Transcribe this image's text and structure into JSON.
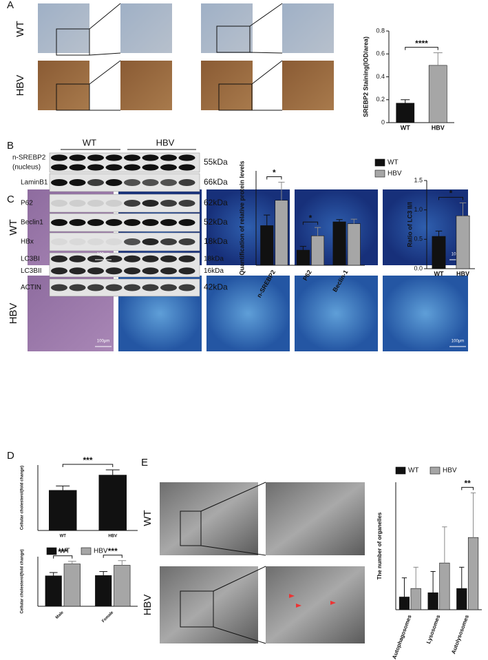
{
  "panel_labels": [
    "A",
    "B",
    "C",
    "D",
    "E"
  ],
  "panel_a": {
    "row_labels": [
      "WT",
      "HBV"
    ]
  },
  "panel_b": {
    "groups": [
      "WT",
      "HBV"
    ],
    "blots": [
      {
        "labels": [
          "n-SREBP2",
          "(nucleus)"
        ],
        "kda": [
          "55kDa"
        ]
      },
      {
        "labels": [
          "LaminB1"
        ],
        "kda": [
          "66kDa"
        ]
      },
      {
        "labels": [
          "P62"
        ],
        "kda": [
          "62kDa"
        ]
      },
      {
        "labels": [
          "Beclin1"
        ],
        "kda": [
          "52kDa"
        ]
      },
      {
        "labels": [
          "HBx"
        ],
        "kda": [
          "18kDa"
        ]
      },
      {
        "labels": [
          "LC3BI",
          "LC3BII"
        ],
        "kda": [
          "18kDa",
          "16kDa"
        ]
      },
      {
        "labels": [
          "ACTIN"
        ],
        "kda": [
          "42kDa"
        ]
      }
    ]
  },
  "panel_c": {
    "row_labels": [
      "WT",
      "HBV"
    ],
    "scale_labels": [
      "100μm",
      "100μm",
      "100μm",
      "100μm"
    ]
  },
  "panel_e": {
    "row_labels": [
      "WT",
      "HBV"
    ]
  },
  "chart_data": [
    {
      "type": "bar",
      "ylabel": "SREBP2 Staining(IOD/area)",
      "categories": [
        "WT",
        "HBV"
      ],
      "values": [
        0.17,
        0.5
      ],
      "errors": [
        0.03,
        0.11
      ],
      "colors": [
        "#111111",
        "#a6a6a6"
      ],
      "ylim": [
        0,
        0.8
      ],
      "yticks": [
        0,
        0.2,
        0.4,
        0.6,
        0.8
      ],
      "significance": "****"
    },
    {
      "type": "bar",
      "ylabel": "Quantification of relative protein levels",
      "categories": [
        "n-SREBP2",
        "P62",
        "Beclin-1"
      ],
      "series": [
        {
          "name": "WT",
          "color": "#111111",
          "values": [
            1.05,
            0.4,
            1.15
          ],
          "errors": [
            0.28,
            0.1,
            0.06
          ]
        },
        {
          "name": "HBV",
          "color": "#a6a6a6",
          "values": [
            1.72,
            0.78,
            1.1
          ],
          "errors": [
            0.48,
            0.22,
            0.12
          ]
        }
      ],
      "ylim": [
        0,
        2.5
      ],
      "significance": [
        "*",
        "*",
        null
      ],
      "legend": "top-right"
    },
    {
      "type": "bar",
      "ylabel": "Ratio of LC3 II/I",
      "categories": [
        "WT",
        "HBV"
      ],
      "values": [
        0.55,
        0.9
      ],
      "errors": [
        0.09,
        0.22
      ],
      "colors": [
        "#111111",
        "#a6a6a6"
      ],
      "ylim": [
        0,
        1.5
      ],
      "yticks": [
        {
          "value": 0,
          "label": "0.0"
        },
        0.5,
        {
          "value": 1,
          "label": "1.0"
        },
        1.5
      ],
      "significance": "*"
    },
    {
      "type": "bar",
      "ylabel": "Cellular cholesterol(fold change)",
      "categories": [
        "WT",
        "HBV"
      ],
      "values": [
        0.92,
        1.27
      ],
      "errors": [
        0.1,
        0.12
      ],
      "colors": [
        "#111111",
        "#111111"
      ],
      "ylim": [
        0,
        1.5
      ],
      "significance": "***"
    },
    {
      "type": "bar",
      "ylabel": "Cellular cholesterol(fold change)",
      "categories": [
        "Male",
        "Female"
      ],
      "series": [
        {
          "name": "WT",
          "color": "#111111",
          "values": [
            0.92,
            0.93
          ],
          "errors": [
            0.1,
            0.12
          ]
        },
        {
          "name": "HBV",
          "color": "#a6a6a6",
          "values": [
            1.28,
            1.24
          ],
          "errors": [
            0.08,
            0.14
          ]
        }
      ],
      "ylim": [
        0,
        1.5
      ],
      "significance": [
        "***",
        "***"
      ],
      "legend": "top"
    },
    {
      "type": "bar",
      "ylabel": "The number of organelles",
      "categories": [
        "Autophagosomes",
        "Lysosomes",
        "Autolysosomes"
      ],
      "series": [
        {
          "name": "WT",
          "color": "#111111",
          "values": [
            0.3,
            0.4,
            0.5
          ],
          "errors": [
            0.45,
            0.5,
            0.5
          ]
        },
        {
          "name": "HBV",
          "color": "#a6a6a6",
          "values": [
            0.5,
            1.1,
            1.7
          ],
          "errors": [
            0.5,
            0.85,
            1.05
          ]
        }
      ],
      "ylim": [
        0,
        3
      ],
      "significance": [
        null,
        null,
        "**"
      ],
      "legend": "top"
    }
  ]
}
